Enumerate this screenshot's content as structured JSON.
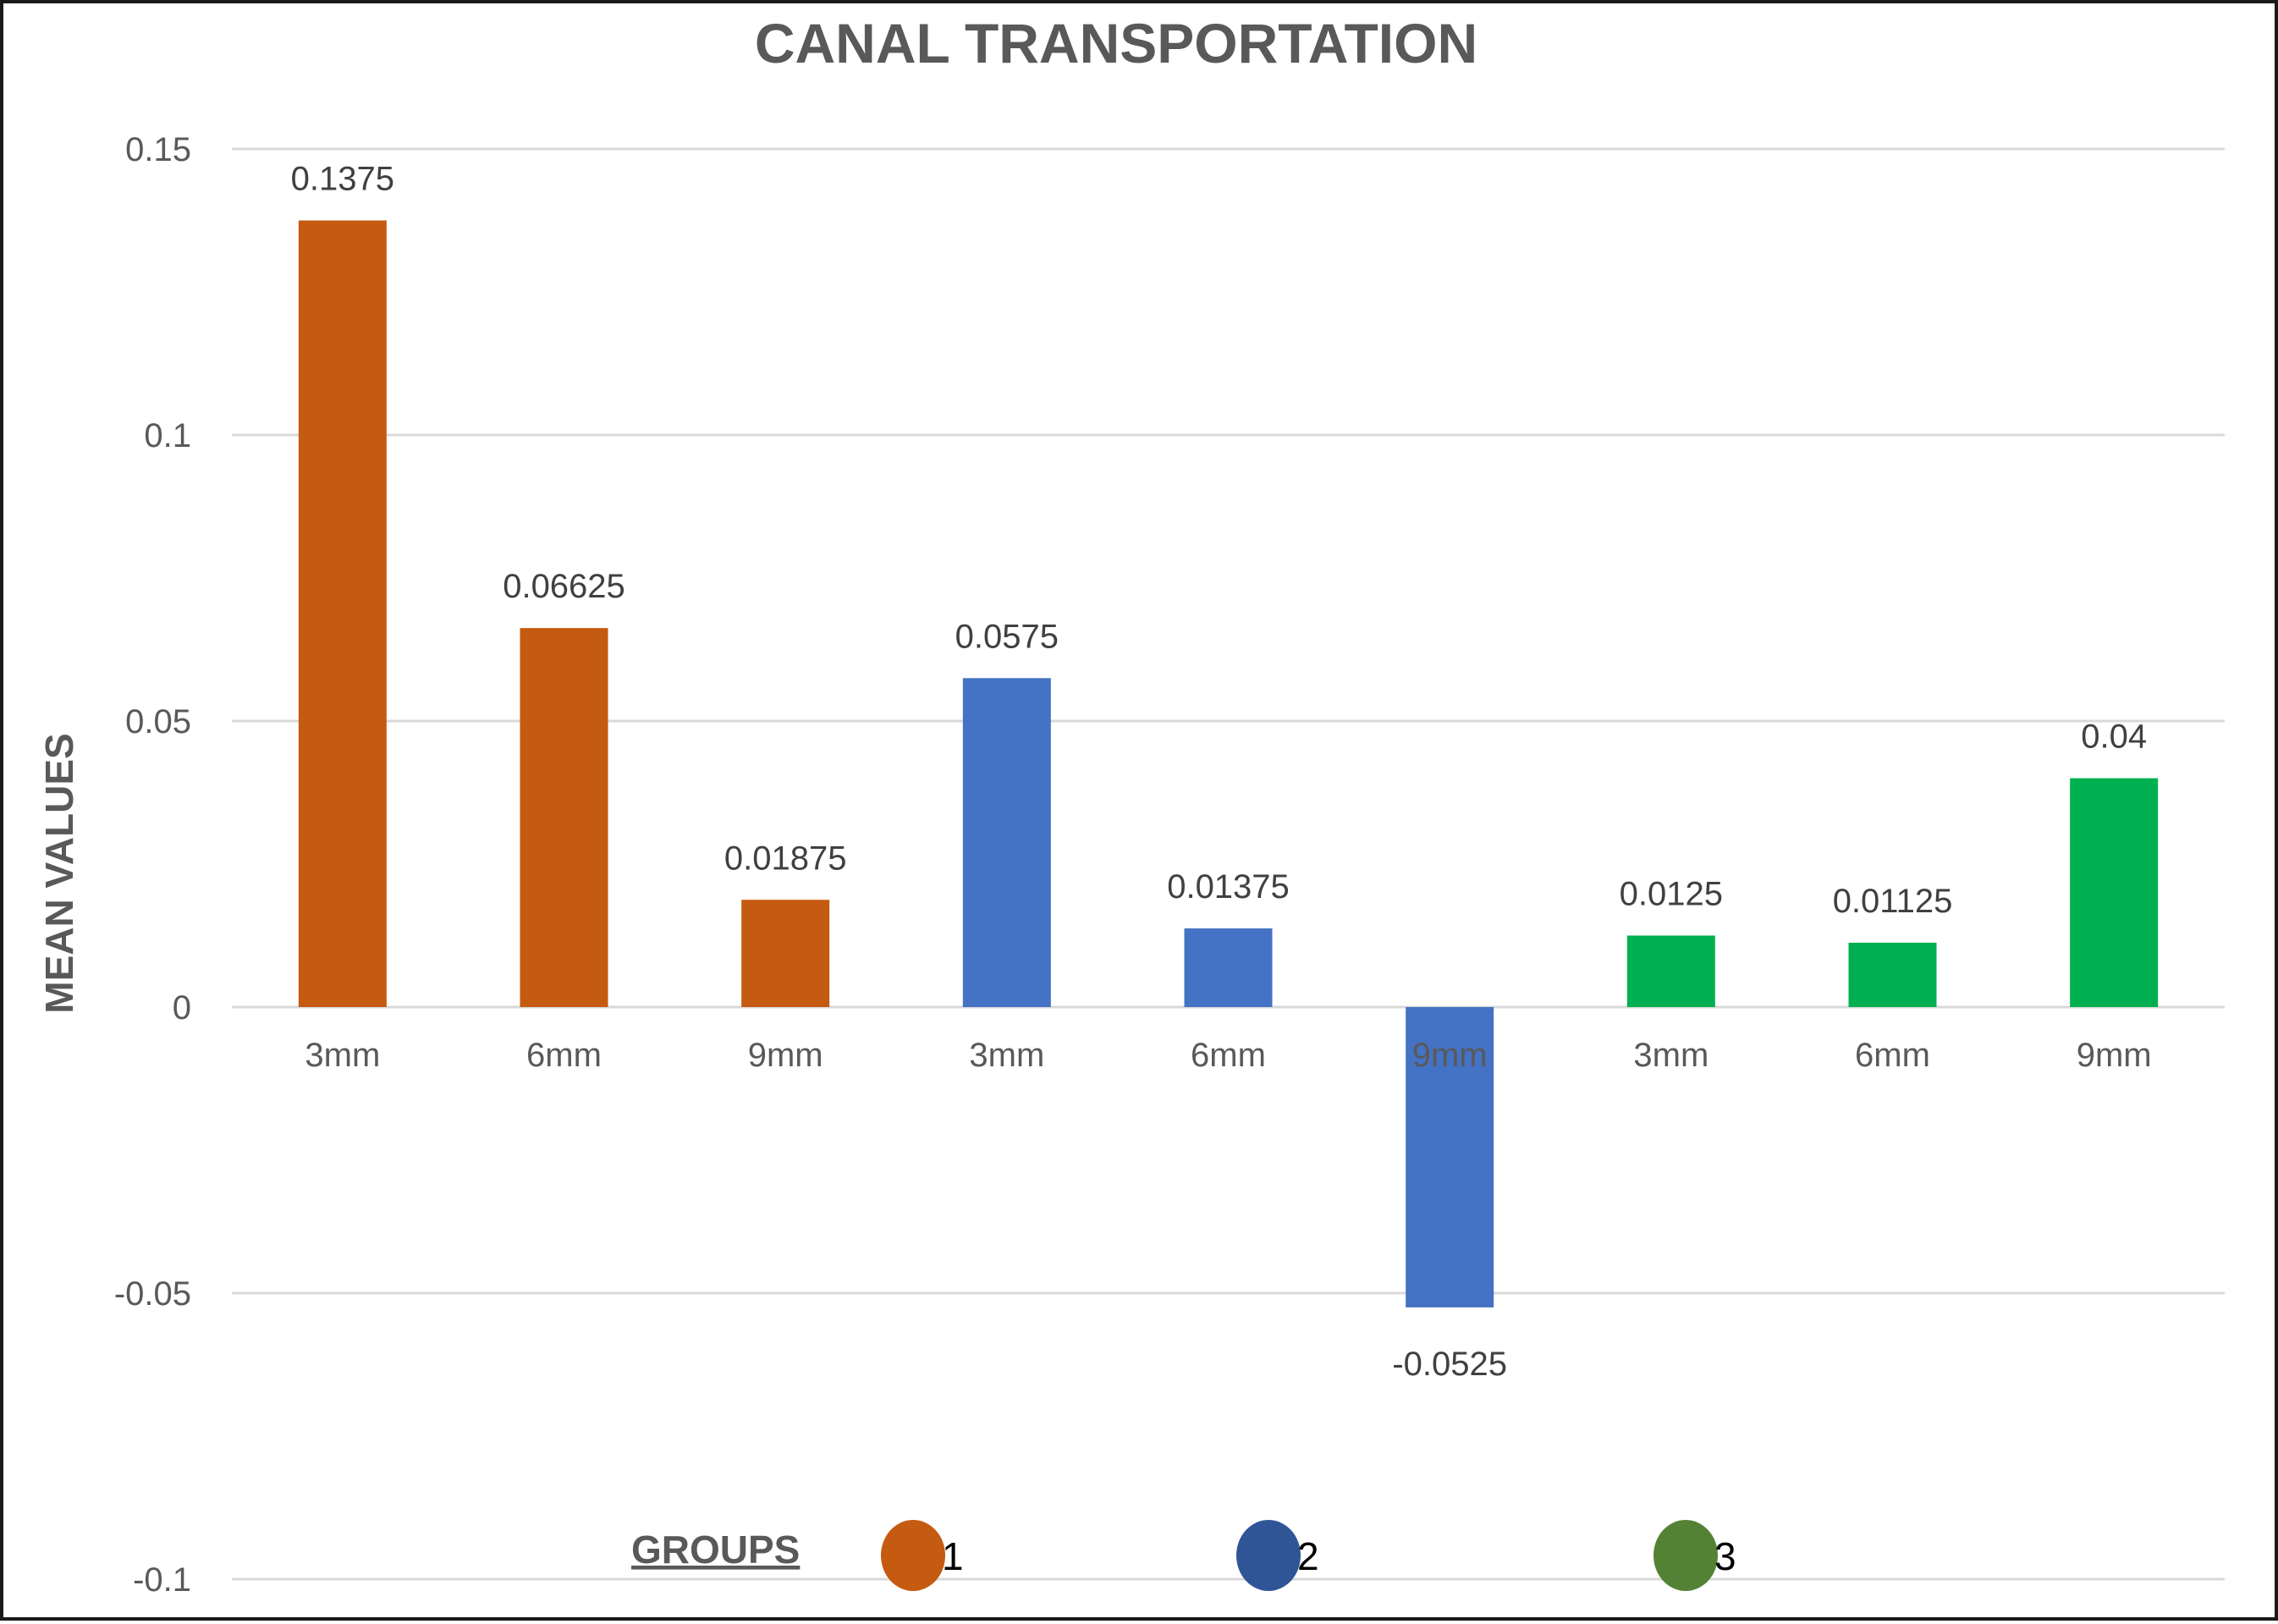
{
  "chart_data": {
    "type": "bar",
    "title": "CANAL TRANSPORTATION",
    "xlabel": "",
    "ylabel": "MEAN VALUES",
    "ylim": [
      -0.1,
      0.15
    ],
    "yticks": [
      0.15,
      0.1,
      0.05,
      0,
      -0.05,
      -0.1
    ],
    "ytick_labels": [
      "0.15",
      "0.1",
      "0.05",
      "0",
      "-0.05",
      "-0.1"
    ],
    "grid": true,
    "categories": [
      "3mm",
      "6mm",
      "9mm",
      "3mm",
      "6mm",
      "9mm",
      "3mm",
      "6mm",
      "9mm"
    ],
    "values": [
      0.1375,
      0.06625,
      0.01875,
      0.0575,
      0.01375,
      -0.0525,
      0.0125,
      0.01125,
      0.04
    ],
    "value_labels": [
      "0.1375",
      "0.06625",
      "0.01875",
      "0.0575",
      "0.01375",
      "-0.0525",
      "0.0125",
      "0.01125",
      "0.04"
    ],
    "bar_colors": [
      "#C55A11",
      "#C55A11",
      "#C55A11",
      "#4472C4",
      "#4472C4",
      "#4472C4",
      "#00B050",
      "#00B050",
      "#00B050"
    ],
    "legend": {
      "title": "GROUPS",
      "placement": "bottom",
      "entries": [
        {
          "label": "1",
          "color": "#C55A11"
        },
        {
          "label": "2",
          "color": "#2F5597"
        },
        {
          "label": "3",
          "color": "#548235"
        }
      ]
    }
  }
}
